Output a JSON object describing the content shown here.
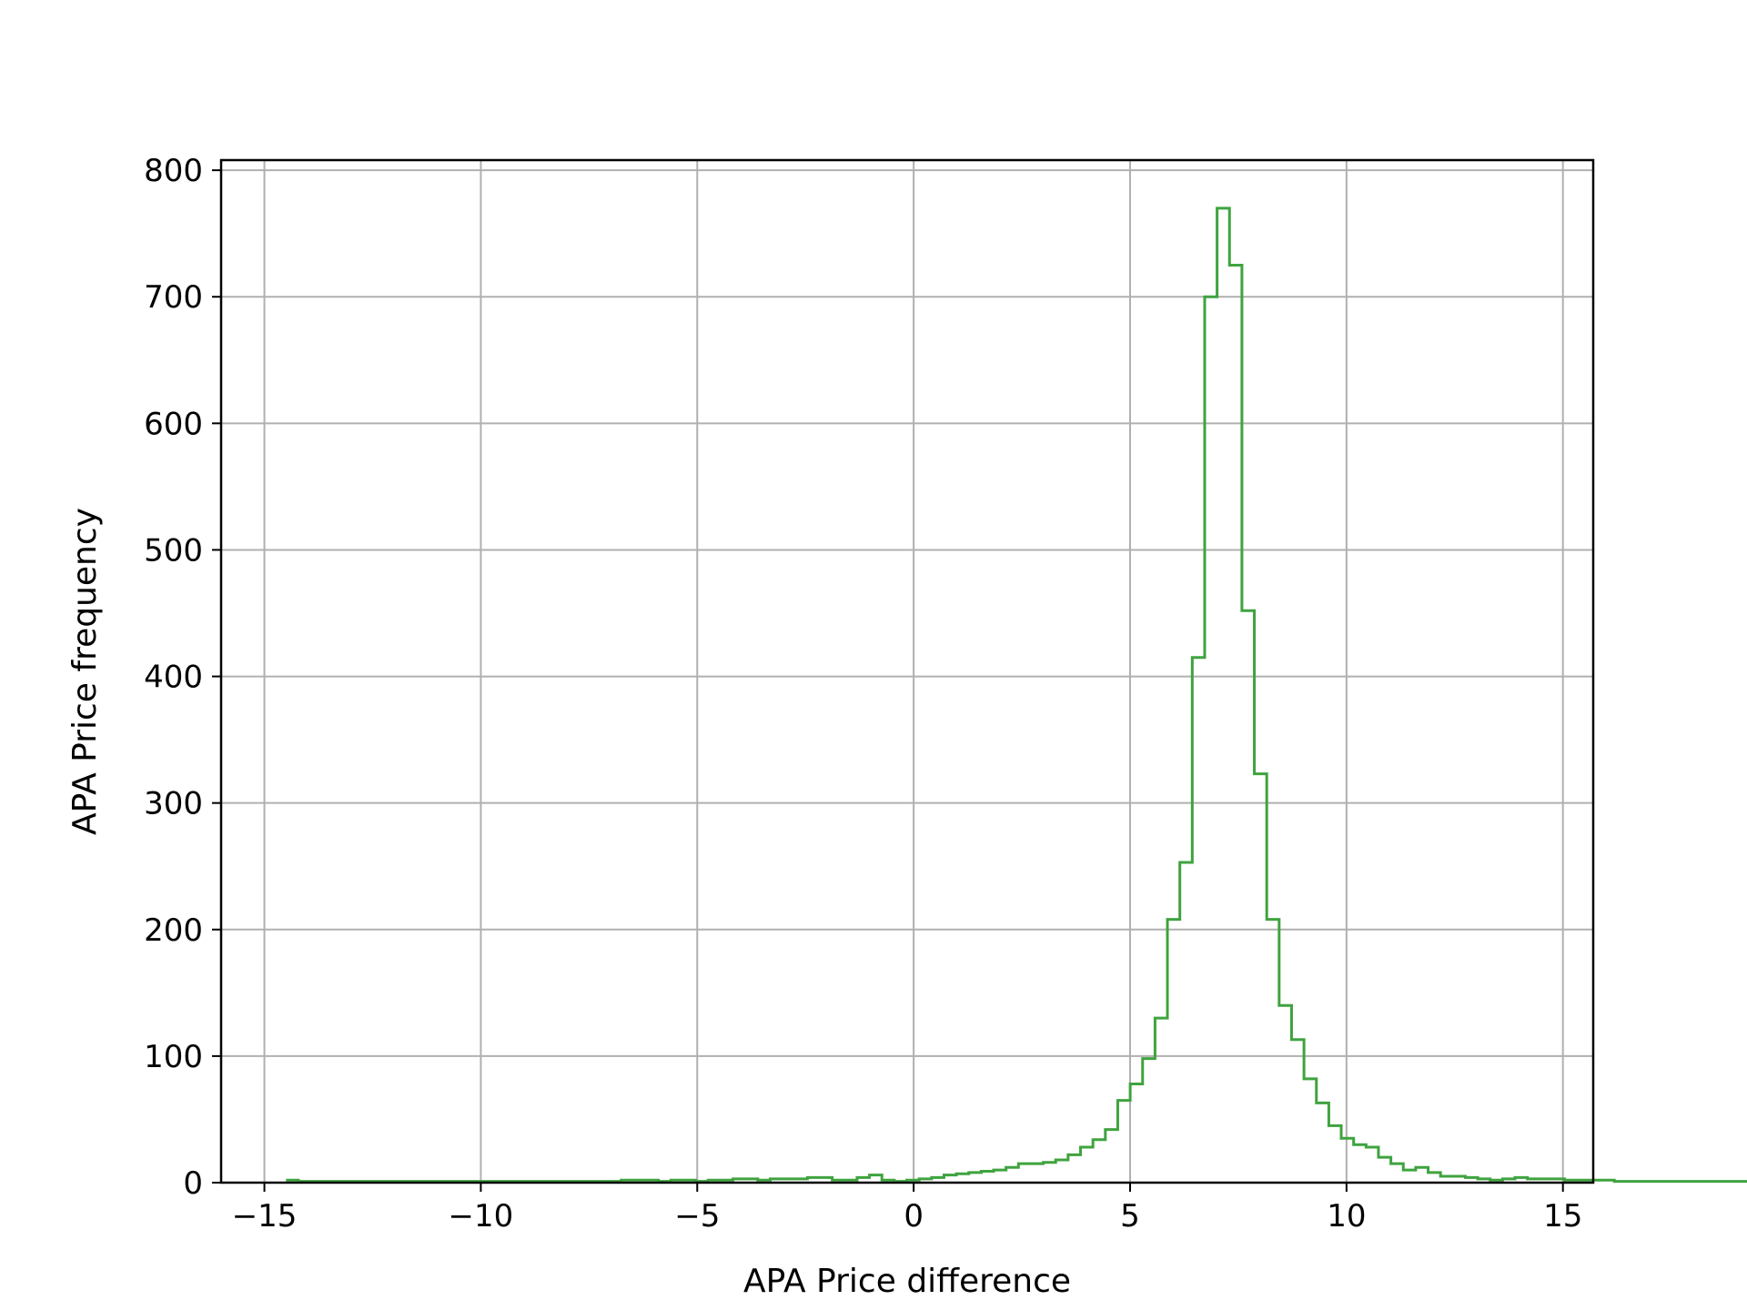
{
  "chart_data": {
    "type": "histogram",
    "title": "",
    "xlabel": "APA Price difference",
    "ylabel": "APA Price frequency",
    "xlim": [
      -16,
      15.7
    ],
    "ylim": [
      0,
      808
    ],
    "grid": true,
    "legend": "none",
    "line_color": "#3fa33f",
    "grid_color": "#b0b0b0",
    "bin_start": -14.5,
    "bin_width": 0.2868,
    "values": [
      2,
      1,
      1,
      1,
      1,
      1,
      1,
      1,
      1,
      1,
      1,
      1,
      1,
      1,
      1,
      1,
      1,
      1,
      1,
      1,
      1,
      1,
      1,
      1,
      1,
      1,
      1,
      2,
      2,
      2,
      1,
      2,
      2,
      1,
      2,
      2,
      3,
      3,
      2,
      3,
      3,
      3,
      4,
      4,
      2,
      2,
      4,
      6,
      2,
      1,
      2,
      3,
      4,
      6,
      7,
      8,
      9,
      10,
      12,
      15,
      15,
      16,
      18,
      22,
      28,
      34,
      42,
      65,
      78,
      98,
      130,
      208,
      253,
      415,
      700,
      770,
      725,
      452,
      323,
      208,
      140,
      113,
      82,
      63,
      45,
      35,
      30,
      28,
      20,
      15,
      10,
      12,
      8,
      5,
      5,
      4,
      3,
      2,
      3,
      4,
      3,
      3,
      3,
      2,
      2,
      2,
      2,
      1,
      1,
      1,
      1,
      1,
      1,
      1,
      1,
      1,
      1,
      1,
      1,
      1
    ],
    "x_ticks": [
      -15,
      -10,
      -5,
      0,
      5,
      10,
      15
    ],
    "x_tick_labels": [
      "−15",
      "−10",
      "−5",
      "0",
      "5",
      "10",
      "15"
    ],
    "y_ticks": [
      0,
      100,
      200,
      300,
      400,
      500,
      600,
      700,
      800
    ],
    "y_tick_labels": [
      "0",
      "100",
      "200",
      "300",
      "400",
      "500",
      "600",
      "700",
      "800"
    ]
  }
}
